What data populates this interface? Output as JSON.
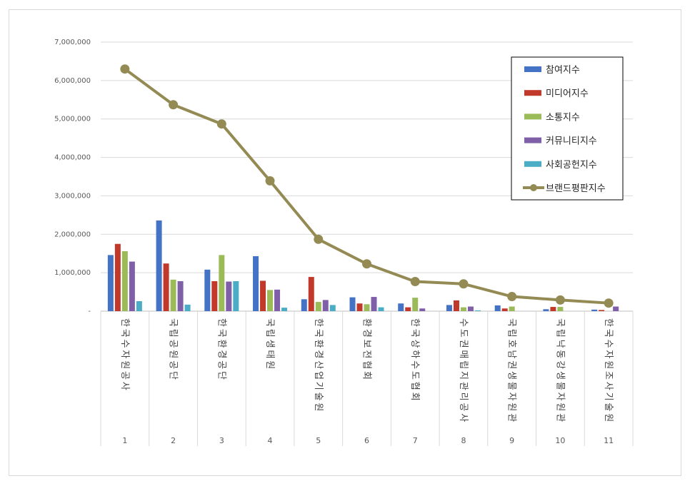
{
  "chart_data": {
    "type": "bar",
    "categories": [
      "1",
      "2",
      "3",
      "4",
      "5",
      "6",
      "7",
      "8",
      "9",
      "10",
      "11"
    ],
    "category_names": [
      "한국수자원공사",
      "국립공원공단",
      "한국환경공단",
      "국립생태원",
      "한국환경산업기술원",
      "환경보전협회",
      "한국상하수도협회",
      "수도권매립지관리공사",
      "국립호남권생물자원관",
      "국립낙동강생물자원관",
      "한국수자원조사기술원"
    ],
    "ylim": [
      0,
      7000000
    ],
    "yticks": [
      0,
      1000000,
      2000000,
      3000000,
      4000000,
      5000000,
      6000000,
      7000000
    ],
    "ytick_labels": [
      "-",
      "1,000,000",
      "2,000,000",
      "3,000,000",
      "4,000,000",
      "5,000,000",
      "6,000,000",
      "7,000,000"
    ],
    "grid": true,
    "legend_position": "top-right",
    "series": [
      {
        "name": "참여지수",
        "type": "bar",
        "color": "#4472c4",
        "values": [
          1460000,
          2360000,
          1080000,
          1430000,
          310000,
          360000,
          200000,
          160000,
          150000,
          50000,
          40000
        ]
      },
      {
        "name": "미디어지수",
        "type": "bar",
        "color": "#c0392b",
        "values": [
          1750000,
          1240000,
          780000,
          790000,
          890000,
          200000,
          100000,
          280000,
          70000,
          110000,
          30000
        ]
      },
      {
        "name": "소통지수",
        "type": "bar",
        "color": "#9bbb59",
        "values": [
          1560000,
          820000,
          1460000,
          550000,
          240000,
          180000,
          350000,
          100000,
          120000,
          110000,
          0
        ]
      },
      {
        "name": "커뮤니티지수",
        "type": "bar",
        "color": "#7f5fa8",
        "values": [
          1290000,
          780000,
          770000,
          560000,
          290000,
          370000,
          70000,
          120000,
          0,
          0,
          120000
        ]
      },
      {
        "name": "사회공헌지수",
        "type": "bar",
        "color": "#4bacc6",
        "values": [
          260000,
          170000,
          780000,
          90000,
          160000,
          100000,
          0,
          20000,
          0,
          0,
          0
        ]
      },
      {
        "name": "브랜드평판지수",
        "type": "line",
        "color": "#948a54",
        "values": [
          6300000,
          5370000,
          4870000,
          3390000,
          1870000,
          1230000,
          770000,
          710000,
          380000,
          290000,
          210000
        ]
      }
    ]
  }
}
